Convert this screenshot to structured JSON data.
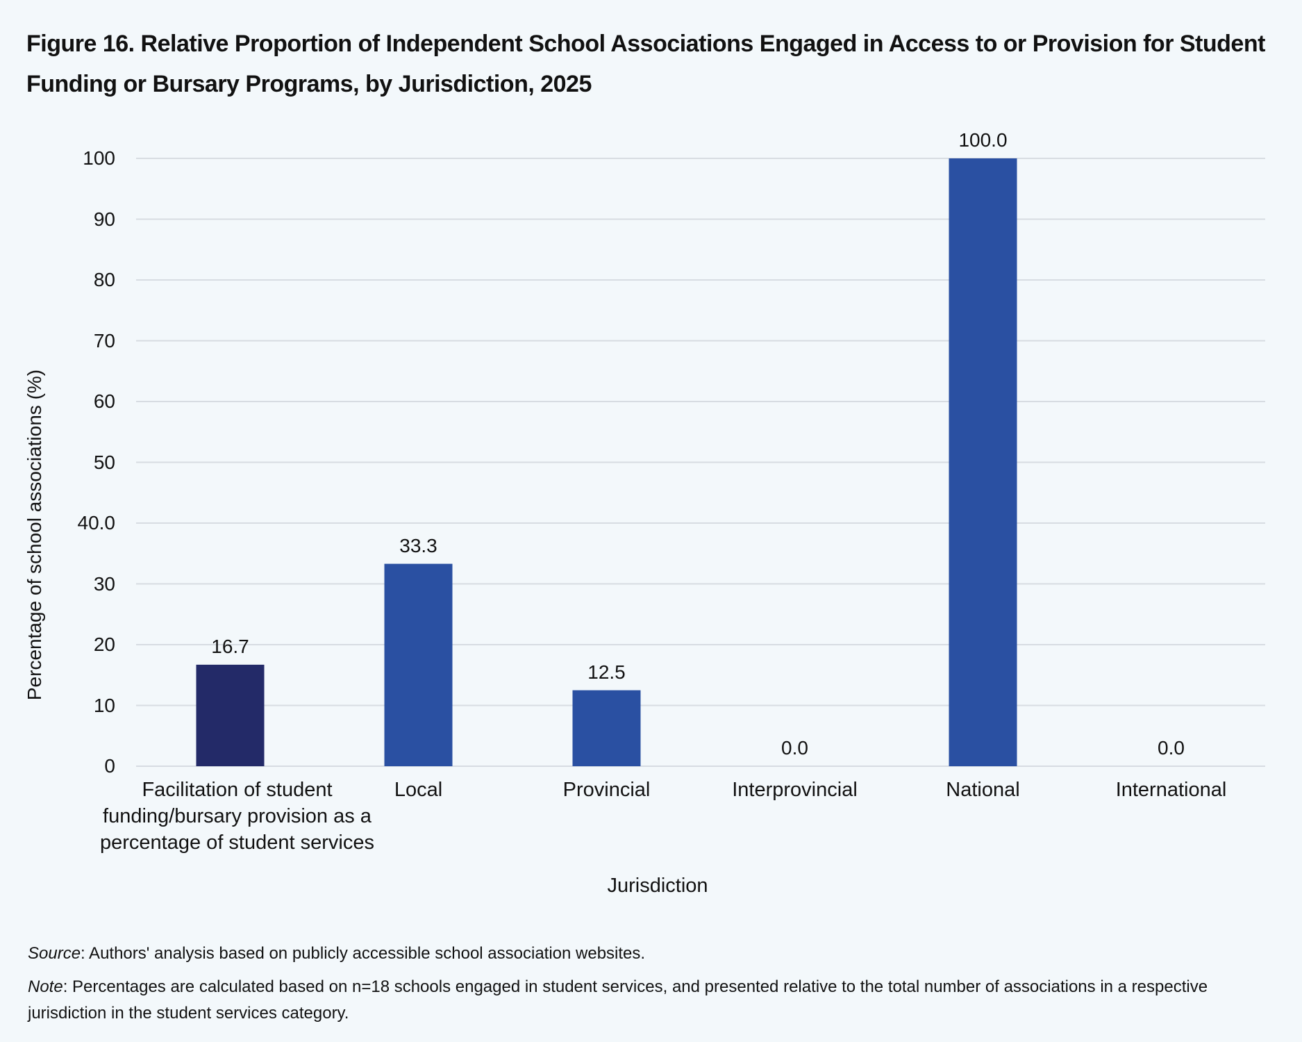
{
  "chart_data": {
    "type": "bar",
    "title": "Figure 16. Relative Proportion of Independent School Associations Engaged in Access to or Provision for Student Funding or Bursary Programs, by Jurisdiction, 2025",
    "x_label": "Jurisdiction",
    "y_label": "Percentage of school associations (%)",
    "categories": [
      "Facilitation of student funding/bursary provision as a percentage of student services",
      "Local",
      "Provincial",
      "Interprovincial",
      "National",
      "International"
    ],
    "values": [
      16.7,
      33.3,
      12.5,
      0,
      100,
      0
    ],
    "value_labels": [
      "16.7",
      "33.3",
      "12.5",
      "0.0",
      "100.0",
      "0.0"
    ],
    "colors": [
      "#232a68",
      "#2a50a2",
      "#2a50a2",
      "#2a50a2",
      "#2a50a2",
      "#2a50a2"
    ],
    "ylim": [
      0,
      100
    ],
    "yticks": [
      0,
      10,
      20,
      30,
      {
        "value": 40,
        "label": "40.0"
      },
      50,
      60,
      70,
      80,
      90,
      100
    ],
    "grid": true,
    "notes": [
      {
        "label": "Source",
        "text": ": Authors' analysis based on publicly accessible school association websites."
      },
      {
        "label": "Note",
        "text": ": Percentages are calculated based on n=18 schools engaged in student services, and presented relative to the total number of associations in a respective jurisdiction in the student services category."
      }
    ]
  }
}
